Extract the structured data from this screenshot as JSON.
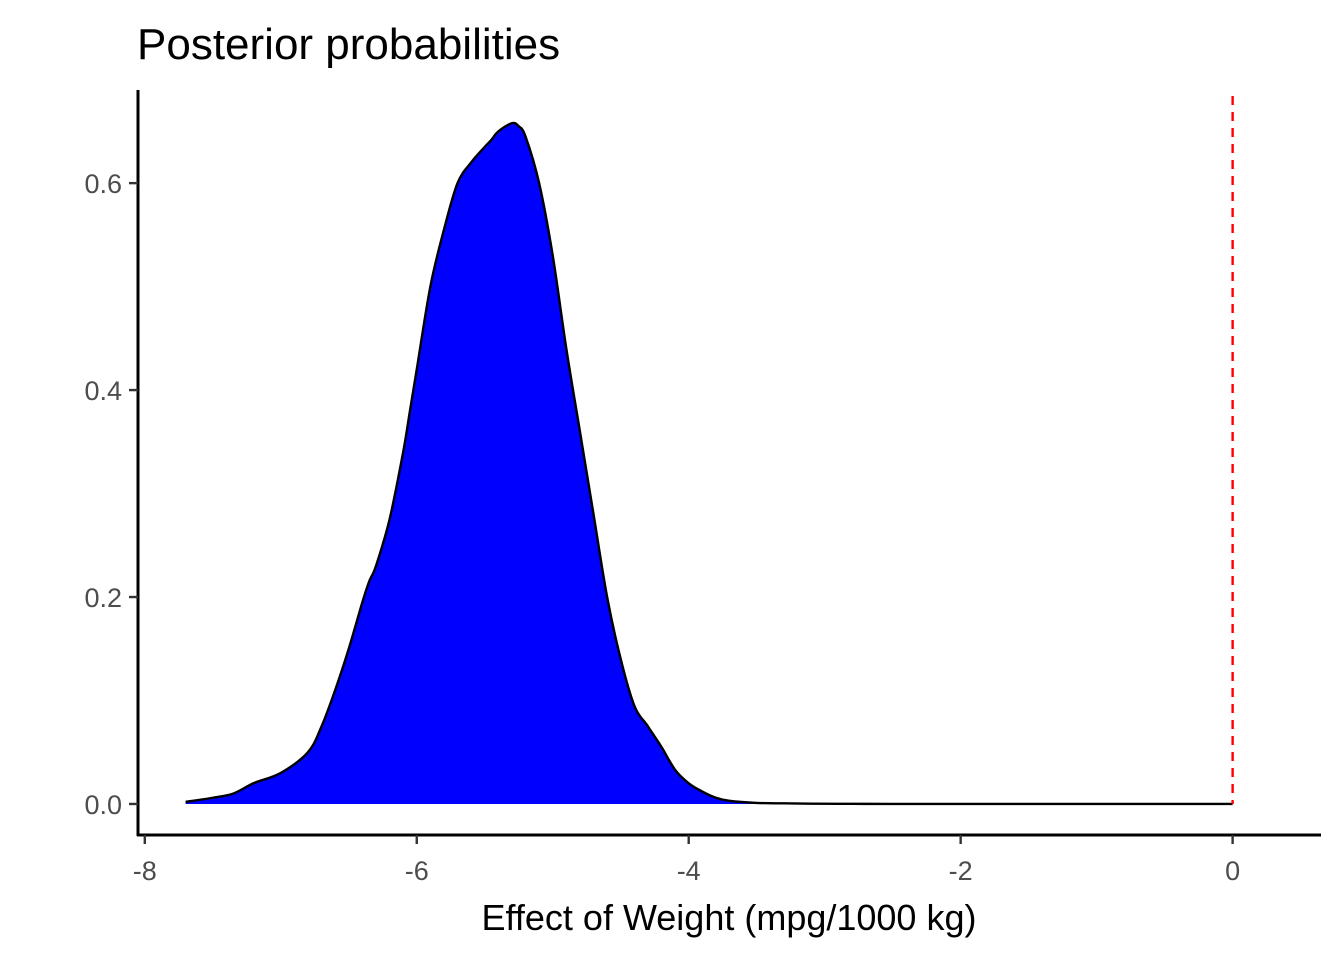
{
  "chart_data": {
    "type": "area",
    "title": "Posterior probabilities",
    "xlabel": "Effect of Weight (mpg/1000 kg)",
    "ylabel": "",
    "xlim": [
      -8.05,
      0.65
    ],
    "ylim": [
      -0.03,
      0.69
    ],
    "xticks": [
      -8,
      -6,
      -4,
      -2,
      0
    ],
    "xtick_labels": [
      "-8",
      "-6",
      "-4",
      "-2",
      "0"
    ],
    "yticks": [
      0.0,
      0.2,
      0.4,
      0.6
    ],
    "ytick_labels": [
      "0.0",
      "0.2",
      "0.4",
      "0.6"
    ],
    "grid": false,
    "fill_color": "#0000FF",
    "line_color": "#000000",
    "reference_line": {
      "x": 0,
      "color": "#FF0000",
      "style": "dashed"
    },
    "series": [
      {
        "x": [
          -7.7,
          -7.5,
          -7.35,
          -7.2,
          -7.0,
          -6.8,
          -6.7,
          -6.6,
          -6.5,
          -6.4,
          -6.35,
          -6.3,
          -6.2,
          -6.1,
          -6.05,
          -6.0,
          -5.9,
          -5.8,
          -5.7,
          -5.6,
          -5.5,
          -5.45,
          -5.4,
          -5.3,
          -5.25,
          -5.2,
          -5.1,
          -5.0,
          -4.9,
          -4.8,
          -4.7,
          -4.6,
          -4.5,
          -4.4,
          -4.3,
          -4.2,
          -4.1,
          -4.0,
          -3.9,
          -3.8,
          -3.7,
          -3.5,
          -3.3,
          -3.1,
          -2.8,
          -2.5,
          -2.0,
          -1.0,
          0.0
        ],
        "y": [
          0.002,
          0.006,
          0.01,
          0.02,
          0.03,
          0.05,
          0.075,
          0.11,
          0.15,
          0.195,
          0.215,
          0.23,
          0.275,
          0.34,
          0.38,
          0.42,
          0.5,
          0.555,
          0.6,
          0.62,
          0.635,
          0.642,
          0.65,
          0.658,
          0.655,
          0.645,
          0.6,
          0.53,
          0.44,
          0.36,
          0.28,
          0.2,
          0.14,
          0.095,
          0.075,
          0.055,
          0.033,
          0.02,
          0.012,
          0.006,
          0.003,
          0.001,
          0.0006,
          0.0003,
          0.0001,
          5e-05,
          2e-05,
          1e-05,
          0.0
        ]
      }
    ]
  }
}
